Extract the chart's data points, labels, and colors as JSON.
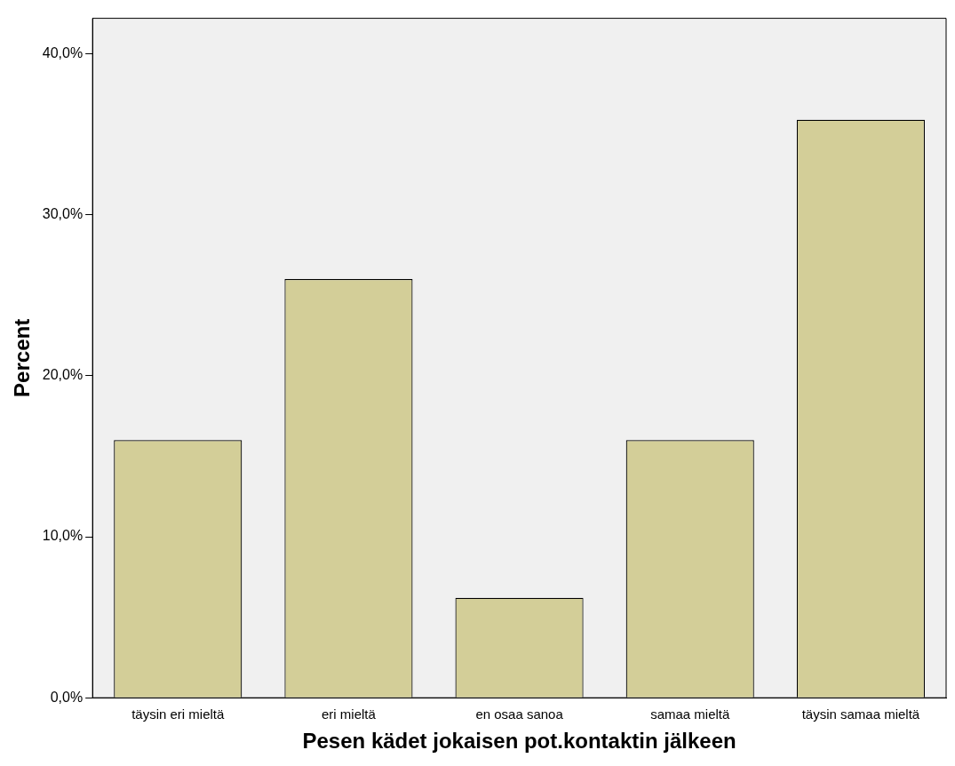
{
  "chart_data": {
    "type": "bar",
    "xlabel": "Pesen kädet jokaisen pot.kontaktin jälkeen",
    "ylabel": "Percent",
    "categories": [
      "täysin eri mieltä",
      "eri mieltä",
      "en osaa sanoa",
      "samaa mieltä",
      "täysin samaa mieltä"
    ],
    "values": [
      16.0,
      26.0,
      6.2,
      16.0,
      35.9
    ],
    "color": "#d3ce98",
    "ylim": [
      0,
      42.2
    ],
    "yticks": [
      {
        "value": 0,
        "label": "0,0%"
      },
      {
        "value": 10,
        "label": "10,0%"
      },
      {
        "value": 20,
        "label": "20,0%"
      },
      {
        "value": 30,
        "label": "30,0%"
      },
      {
        "value": 40,
        "label": "40,0%"
      }
    ],
    "grid": false,
    "legend": false
  }
}
